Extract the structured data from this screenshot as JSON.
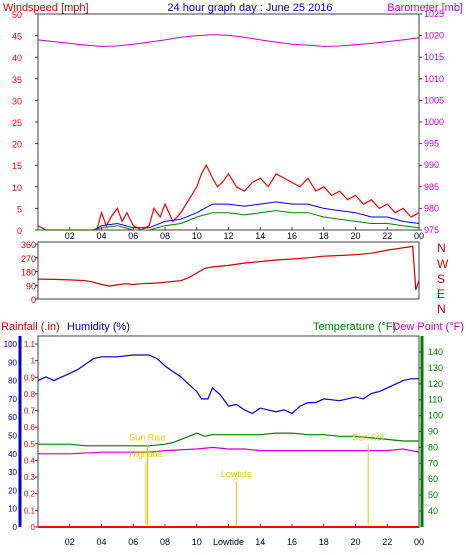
{
  "colors": {
    "wind": "#ff0000",
    "wind_avg": "#0000ff",
    "wind_gust": "#008000",
    "barometer": "#cc00cc",
    "direction": "#cc0000",
    "rain": "#ff0000",
    "humidity": "#0000cc",
    "temperature": "#008000",
    "dewpoint": "#cc00cc",
    "annotation": "#e6c800",
    "frame": "#404040"
  },
  "top": {
    "left_label": "Windspeed [mph]",
    "title": "24 hour graph day : June 25 2016",
    "right_label": "Barometer [mb]"
  },
  "direction": {
    "compass": [
      "N",
      "W",
      "S",
      "E",
      "N"
    ]
  },
  "bottom": {
    "rain_label": "Rainfall (.in)",
    "humidity_label": "Humidity (%)",
    "temp_label": "Temperature (°F)",
    "dew_label": "Dew Point (°F)",
    "annotations": [
      {
        "text": "Hightide",
        "x": 6.8,
        "y": 0.42
      },
      {
        "text": "Sun Rise",
        "x": 6.9,
        "y": 0.52
      },
      {
        "text": "Lowtide",
        "x": 12.5,
        "y": 0.3
      },
      {
        "text": "Sun Set",
        "x": 20.8,
        "y": 0.52
      }
    ],
    "x_tick_overrides": {
      "12": "Lowtide"
    }
  },
  "chart_data": [
    {
      "type": "line",
      "title": "24 hour graph day : June 25 2016",
      "xlabel": "",
      "ylabel": "Windspeed [mph]",
      "y2label": "Barometer [mb]",
      "xlim": [
        0,
        24
      ],
      "ylim": [
        0,
        50
      ],
      "y2lim": [
        975,
        1025
      ],
      "x_ticks": [
        "02",
        "04",
        "06",
        "08",
        "10",
        "12",
        "14",
        "16",
        "18",
        "20",
        "22",
        "00"
      ],
      "y_ticks": [
        0,
        5,
        10,
        15,
        20,
        25,
        30,
        35,
        40,
        45,
        50
      ],
      "y2_ticks": [
        975,
        980,
        985,
        990,
        995,
        1000,
        1005,
        1010,
        1015,
        1020,
        1025
      ],
      "series": [
        {
          "name": "Windspeed [mph]",
          "axis": "left",
          "x": [
            0,
            0.5,
            1,
            2,
            3,
            3.5,
            3.7,
            4,
            4.3,
            4.6,
            5,
            5.3,
            5.6,
            6,
            6.5,
            7,
            7.3,
            7.7,
            8,
            8.5,
            9,
            9.5,
            10,
            10.3,
            10.6,
            11,
            11.3,
            11.6,
            12,
            12.5,
            13,
            13.5,
            14,
            14.5,
            15,
            15.5,
            16,
            16.5,
            17,
            17.5,
            18,
            18.5,
            19,
            19.5,
            20,
            20.5,
            21,
            21.5,
            22,
            22.5,
            23,
            23.5,
            24
          ],
          "y": [
            1,
            0,
            0,
            0,
            0,
            0,
            0,
            4,
            1,
            3,
            5,
            2,
            4,
            1,
            0,
            1,
            5,
            3,
            6,
            2,
            4,
            7,
            10,
            13,
            15,
            12,
            10,
            11,
            13,
            10,
            9,
            11,
            12,
            10,
            13,
            12,
            11,
            10,
            12,
            9,
            10,
            8,
            9,
            7,
            8,
            6,
            7,
            5,
            6,
            4,
            5,
            3,
            4
          ]
        },
        {
          "name": "Average",
          "axis": "left",
          "x": [
            0,
            3.5,
            4,
            5,
            6,
            7,
            8,
            9,
            10,
            11,
            12,
            13,
            14,
            15,
            16,
            17,
            18,
            19,
            20,
            21,
            22,
            23,
            24
          ],
          "y": [
            0,
            0,
            1,
            1.5,
            0.5,
            0.5,
            2,
            2.5,
            4,
            6,
            6,
            5.5,
            6,
            6.5,
            6,
            6,
            5,
            4.5,
            4,
            3,
            3,
            2,
            1.5
          ]
        },
        {
          "name": "Gust",
          "axis": "left",
          "x": [
            0,
            3.5,
            4,
            5,
            6,
            7,
            8,
            9,
            10,
            11,
            12,
            13,
            14,
            15,
            16,
            17,
            18,
            19,
            20,
            21,
            22,
            23,
            24
          ],
          "y": [
            0,
            0,
            0.5,
            1,
            0,
            0,
            1,
            1.5,
            3,
            4,
            4,
            3.5,
            4,
            4.5,
            4,
            4,
            3,
            2.5,
            2,
            1.5,
            1.5,
            1,
            0.5
          ]
        },
        {
          "name": "Barometer [mb]",
          "axis": "right",
          "x": [
            0,
            1,
            2,
            3,
            4,
            5,
            6,
            7,
            8,
            9,
            10,
            11,
            12,
            13,
            14,
            15,
            16,
            17,
            18,
            19,
            20,
            21,
            22,
            23,
            24
          ],
          "y": [
            1019,
            1018.6,
            1018.2,
            1017.8,
            1017.5,
            1017.6,
            1018,
            1018.5,
            1019,
            1019.6,
            1020,
            1020.2,
            1020.1,
            1019.6,
            1019,
            1018.5,
            1018,
            1017.8,
            1017.5,
            1017.6,
            1017.9,
            1018.2,
            1018.6,
            1019,
            1019.5
          ]
        }
      ]
    },
    {
      "type": "line",
      "ylabel": "Wind direction",
      "xlim": [
        0,
        24
      ],
      "ylim": [
        0,
        360
      ],
      "y_ticks": [
        0,
        90,
        180,
        270,
        360
      ],
      "series": [
        {
          "name": "Wind direction",
          "x": [
            0,
            1,
            2,
            3,
            3.5,
            4,
            4.5,
            5,
            5.5,
            6,
            6.5,
            7,
            7.5,
            8,
            8.5,
            9,
            9.5,
            10,
            10.5,
            11,
            12,
            13,
            14,
            15,
            16,
            17,
            18,
            19,
            20,
            21,
            22,
            23,
            23.3,
            23.6,
            23.8,
            24
          ],
          "y": [
            130,
            128,
            125,
            120,
            110,
            95,
            85,
            92,
            100,
            95,
            100,
            102,
            105,
            110,
            115,
            120,
            140,
            170,
            200,
            210,
            220,
            235,
            245,
            255,
            262,
            270,
            280,
            285,
            290,
            300,
            320,
            335,
            340,
            345,
            60,
            120
          ]
        }
      ]
    },
    {
      "type": "line",
      "xlim": [
        0,
        24
      ],
      "ylim": [
        0,
        1.1
      ],
      "y_ticks": [
        0,
        0.1,
        0.2,
        0.3,
        0.4,
        0.5,
        0.6,
        0.7,
        0.8,
        0.9,
        1,
        1.1
      ],
      "y_humidity_ticks": [
        0,
        10,
        20,
        30,
        40,
        50,
        60,
        70,
        80,
        90,
        100
      ],
      "y_temp_ticks": [
        40,
        50,
        60,
        70,
        80,
        90,
        100,
        110,
        120,
        130,
        140
      ],
      "x_ticks": [
        "02",
        "04",
        "06",
        "08",
        "10",
        "12",
        "14",
        "16",
        "18",
        "20",
        "22",
        "00"
      ],
      "series": [
        {
          "name": "Rainfall (.in)",
          "axis": "rain",
          "x": [
            0,
            24
          ],
          "y": [
            0,
            0
          ]
        },
        {
          "name": "Humidity (%)",
          "axis": "humidity",
          "x": [
            0,
            0.5,
            1,
            1.5,
            2,
            2.5,
            3,
            3.5,
            4,
            5,
            6,
            7,
            7.5,
            8,
            8.5,
            9,
            9.5,
            10,
            10.3,
            10.7,
            11,
            11.5,
            12,
            12.5,
            13,
            13.5,
            14,
            14.5,
            15,
            15.5,
            16,
            16.5,
            17,
            17.5,
            18,
            19,
            20,
            20.5,
            21,
            21.5,
            22,
            22.5,
            23,
            23.5,
            24
          ],
          "y": [
            80,
            82,
            80,
            82,
            84,
            86,
            89,
            92,
            93,
            93,
            94,
            94,
            92,
            88,
            85,
            82,
            78,
            74,
            70,
            70,
            76,
            72,
            66,
            67,
            64,
            62,
            65,
            64,
            63,
            64,
            62,
            66,
            68,
            68,
            70,
            69,
            71,
            70,
            73,
            74,
            76,
            78,
            80,
            81,
            81
          ]
        },
        {
          "name": "Temperature (°F)",
          "axis": "temp",
          "x": [
            0,
            1,
            2,
            3,
            4,
            5,
            6,
            7,
            8,
            8.5,
            9,
            9.5,
            10,
            10.5,
            11,
            12,
            13,
            14,
            15,
            16,
            17,
            18,
            19,
            20,
            21,
            22,
            23,
            24
          ],
          "y": [
            82,
            82,
            82,
            81,
            81,
            81,
            81,
            81,
            82,
            83,
            85,
            87,
            89,
            87,
            88,
            88,
            88,
            88,
            89,
            89,
            88,
            88,
            87,
            87,
            86,
            85,
            84,
            84
          ]
        },
        {
          "name": "Dew Point (°F)",
          "axis": "temp",
          "x": [
            0,
            2,
            4,
            6,
            7,
            8,
            10,
            11,
            12,
            13,
            14,
            16,
            18,
            20,
            22,
            23,
            24
          ],
          "y": [
            76,
            76,
            77,
            77,
            77,
            78,
            79,
            80,
            79,
            79,
            78,
            78,
            78,
            78,
            78,
            79,
            77
          ]
        }
      ]
    }
  ]
}
